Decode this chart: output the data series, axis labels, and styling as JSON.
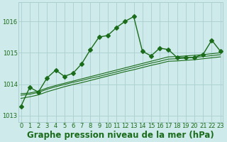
{
  "title": "Graphe pression niveau de la mer (hPa)",
  "bg_color": "#ceeaea",
  "grid_color": "#aacfcf",
  "line_color": "#1a6b1a",
  "xlim": [
    -0.3,
    23.3
  ],
  "ylim": [
    1012.8,
    1016.6
  ],
  "yticks": [
    1013,
    1014,
    1015,
    1016
  ],
  "xticks": [
    0,
    1,
    2,
    3,
    4,
    5,
    6,
    7,
    8,
    9,
    10,
    11,
    12,
    13,
    14,
    15,
    16,
    17,
    18,
    19,
    20,
    21,
    22,
    23
  ],
  "series": [
    [
      1013.3,
      1013.9,
      1013.75,
      1014.2,
      1014.45,
      1014.25,
      1014.35,
      1014.65,
      1015.1,
      1015.5,
      1015.55,
      1015.8,
      1016.0,
      1016.15,
      1015.05,
      1014.9,
      1015.15,
      1015.1,
      1014.85,
      1014.85,
      1014.85,
      1014.95,
      1015.4,
      1015.05
    ],
    [
      1013.7,
      1013.72,
      1013.78,
      1013.88,
      1013.96,
      1014.03,
      1014.1,
      1014.17,
      1014.24,
      1014.31,
      1014.38,
      1014.45,
      1014.52,
      1014.59,
      1014.66,
      1014.73,
      1014.8,
      1014.87,
      1014.88,
      1014.9,
      1014.92,
      1014.94,
      1014.97,
      1015.0
    ],
    [
      1013.65,
      1013.68,
      1013.74,
      1013.84,
      1013.92,
      1013.99,
      1014.06,
      1014.12,
      1014.19,
      1014.25,
      1014.32,
      1014.39,
      1014.46,
      1014.53,
      1014.6,
      1014.67,
      1014.73,
      1014.8,
      1014.81,
      1014.83,
      1014.85,
      1014.88,
      1014.91,
      1014.94
    ],
    [
      1013.55,
      1013.6,
      1013.66,
      1013.76,
      1013.84,
      1013.92,
      1013.99,
      1014.05,
      1014.12,
      1014.19,
      1014.26,
      1014.33,
      1014.4,
      1014.46,
      1014.53,
      1014.6,
      1014.66,
      1014.73,
      1014.74,
      1014.76,
      1014.78,
      1014.81,
      1014.84,
      1014.87
    ]
  ],
  "marker": "D",
  "markersize_main": 3.0,
  "markersize_flat": 0,
  "linewidth_main": 1.0,
  "linewidth_flat": 0.8,
  "title_fontsize": 8.5,
  "tick_fontsize": 6.0
}
